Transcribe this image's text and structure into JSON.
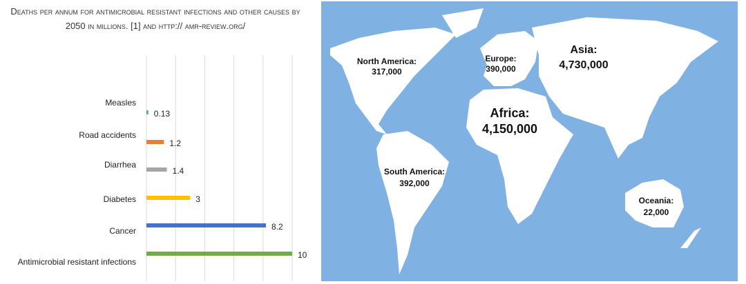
{
  "chart_data": {
    "type": "bar",
    "orientation": "horizontal",
    "title": "Deaths per annum for antimicrobial resistant infections and other causes by 2050 in millions.  [1] and http:// amr-review.org/",
    "categories": [
      "Measles",
      "Road accidents",
      "Diarrhea",
      "Diabetes",
      "Cancer",
      "Antimicrobial resistant infections"
    ],
    "values": [
      0.13,
      1.2,
      1.4,
      3,
      8.2,
      10
    ],
    "colors": [
      "#5b9bd5",
      "#ed7d31",
      "#a5a5a5",
      "#ffc000",
      "#4472c4",
      "#70ad47"
    ],
    "xlim": [
      0,
      10
    ],
    "xticks": [
      0,
      2,
      4,
      6,
      8,
      10
    ],
    "grid": true
  },
  "map": {
    "regions": [
      {
        "name": "North America:",
        "value": "317,000"
      },
      {
        "name": "Europe:",
        "value": "390,000"
      },
      {
        "name": "Asia:",
        "value": "4,730,000"
      },
      {
        "name": "Africa:",
        "value": "4,150,000"
      },
      {
        "name": "South America:",
        "value": "392,000"
      },
      {
        "name": "Oceania:",
        "value": "22,000"
      }
    ]
  }
}
